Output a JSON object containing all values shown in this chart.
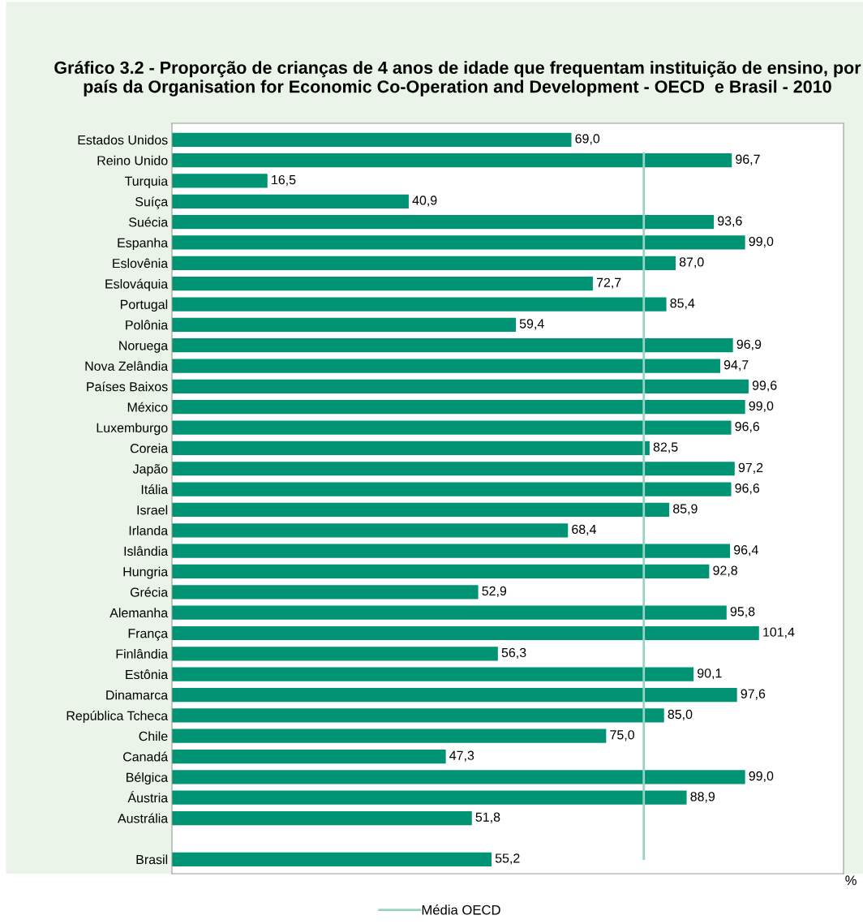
{
  "chart_data": {
    "type": "bar",
    "orientation": "horizontal",
    "title": "Gráfico 3.2 - Proporção de crianças de 4 anos de idade que frequentam instituição de ensino, por país da Organisation for Economic Co-Operation and Development - OECD  e Brasil - 2010",
    "xlabel": "%",
    "categories": [
      "Estados Unidos",
      "Reino Unido",
      "Turquia",
      "Suíça",
      "Suécia",
      "Espanha",
      "Eslovênia",
      "Eslováquia",
      "Portugal",
      "Polônia",
      "Noruega",
      "Nova Zelândia",
      "Países Baixos",
      "México",
      "Luxemburgo",
      "Coreia",
      "Japão",
      "Itália",
      "Israel",
      "Irlanda",
      "Islândia",
      "Hungria",
      "Grécia",
      "Alemanha",
      "França",
      "Finlândia",
      "Estônia",
      "Dinamarca",
      "República Tcheca",
      "Chile",
      "Canadá",
      "Bélgica",
      "Áustria",
      "Austrália",
      null,
      "Brasil"
    ],
    "values": [
      69.0,
      96.7,
      16.5,
      40.9,
      93.6,
      99.0,
      87.0,
      72.7,
      85.4,
      59.4,
      96.9,
      94.7,
      99.6,
      99.0,
      96.6,
      82.5,
      97.2,
      96.6,
      85.9,
      68.4,
      96.4,
      92.8,
      52.9,
      95.8,
      101.4,
      56.3,
      90.1,
      97.6,
      85.0,
      75.0,
      47.3,
      99.0,
      88.9,
      51.8,
      null,
      55.2
    ],
    "value_labels": [
      "69,0",
      "96,7",
      "16,5",
      "40,9",
      "93,6",
      "99,0",
      "87,0",
      "72,7",
      "85,4",
      "59,4",
      "96,9",
      "94,7",
      "99,6",
      "99,0",
      "96,6",
      "82,5",
      "97,2",
      "96,6",
      "85,9",
      "68,4",
      "96,4",
      "92,8",
      "52,9",
      "95,8",
      "101,4",
      "56,3",
      "90,1",
      "97,6",
      "85,0",
      "75,0",
      "47,3",
      "99,0",
      "88,9",
      "51,8",
      null,
      "55,2"
    ],
    "color": "#009474",
    "xlim": [
      0,
      116
    ],
    "tick_labels": "y",
    "grid": false,
    "legend": "bottom",
    "ref_lines": [
      {
        "axis": "x",
        "value": 81.5,
        "label": "Média OECD",
        "color": "#96d3c2"
      }
    ]
  }
}
